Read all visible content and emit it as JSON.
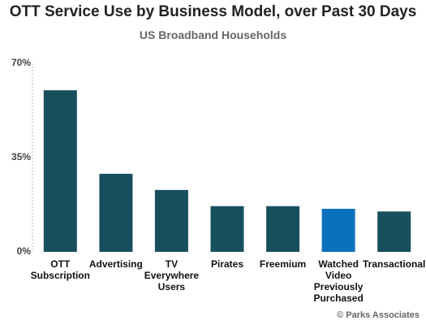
{
  "chart_data": {
    "type": "bar",
    "title": "OTT Service Use by Business Model, over Past 30 Days",
    "subtitle": "US Broadband Households",
    "categories": [
      "OTT Subscription",
      "Advertising",
      "TV Everywhere Users",
      "Pirates",
      "Freemium",
      "Watched Video Previously Purchased",
      "Transactional"
    ],
    "category_lines": [
      [
        "OTT",
        "Subscription"
      ],
      [
        "Advertising"
      ],
      [
        "TV",
        "Everywhere",
        "Users"
      ],
      [
        "Pirates"
      ],
      [
        "Freemium"
      ],
      [
        "Watched",
        "Video",
        "Previously",
        "Purchased"
      ],
      [
        "Transactional"
      ]
    ],
    "values": [
      60,
      29,
      23,
      17,
      17,
      16,
      15
    ],
    "colors": [
      "#184f5d",
      "#184f5d",
      "#184f5d",
      "#184f5d",
      "#184f5d",
      "#0b71bd",
      "#184f5d"
    ],
    "ylim": [
      0,
      70
    ],
    "yticks": [
      "70%",
      "35%",
      "0%"
    ],
    "ytick_values": [
      70,
      35,
      0
    ],
    "xlabel": "",
    "ylabel": "",
    "grid": false,
    "legend": "none"
  },
  "credit": "© Parks Associates"
}
